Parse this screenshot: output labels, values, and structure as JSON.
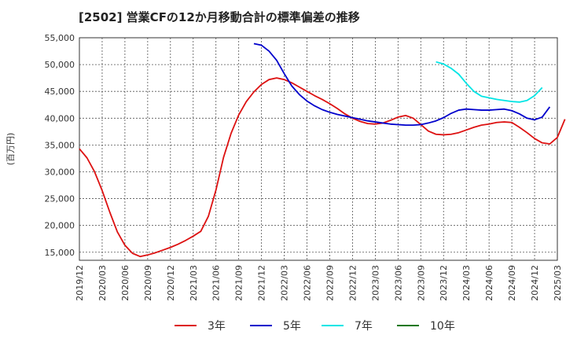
{
  "chart_data": {
    "type": "line",
    "title": "[2502]  営業CFの12か月移動合計の標準偏差の推移",
    "ylabel": "(百万円)",
    "xlabel": "",
    "ylim": [
      13500,
      55000
    ],
    "yticks": [
      15000,
      20000,
      25000,
      30000,
      35000,
      40000,
      45000,
      50000,
      55000
    ],
    "ytick_labels": [
      "15,000",
      "20,000",
      "25,000",
      "30,000",
      "35,000",
      "40,000",
      "45,000",
      "50,000",
      "55,000"
    ],
    "x_start": "2019-12",
    "x_end": "2025-03",
    "xtick_labels": [
      "2019/12",
      "2020/03",
      "2020/06",
      "2020/09",
      "2020/12",
      "2021/03",
      "2021/06",
      "2021/09",
      "2021/12",
      "2022/03",
      "2022/06",
      "2022/09",
      "2022/12",
      "2023/03",
      "2023/06",
      "2023/09",
      "2023/12",
      "2024/03",
      "2024/06",
      "2024/09",
      "2024/12",
      "2025/03"
    ],
    "grid": true,
    "legend_position": "bottom",
    "series": [
      {
        "name": "3年",
        "color": "#dd1111",
        "start": "2019-12",
        "values": [
          34300,
          32600,
          30000,
          26500,
          22500,
          18800,
          16300,
          14800,
          14200,
          14500,
          14900,
          15400,
          15900,
          16500,
          17200,
          18000,
          18900,
          21700,
          26600,
          32700,
          37200,
          40600,
          43100,
          44900,
          46300,
          47200,
          47500,
          47200,
          46600,
          45800,
          45000,
          44200,
          43500,
          42700,
          41800,
          40800,
          40000,
          39400,
          39000,
          38900,
          39100,
          39600,
          40200,
          40500,
          40000,
          38800,
          37600,
          37000,
          36900,
          37000,
          37300,
          37800,
          38300,
          38700,
          38900,
          39200,
          39300,
          39200,
          38300,
          37300,
          36200,
          35400,
          35200,
          36400,
          39800
        ]
      },
      {
        "name": "5年",
        "color": "#0000cc",
        "start": "2021-11",
        "values": [
          53900,
          53600,
          52500,
          50800,
          48300,
          46000,
          44400,
          43200,
          42300,
          41600,
          41100,
          40700,
          40400,
          40100,
          39800,
          39500,
          39300,
          39100,
          38900,
          38800,
          38700,
          38700,
          38800,
          39100,
          39500,
          40100,
          40900,
          41500,
          41700,
          41600,
          41500,
          41500,
          41600,
          41700,
          41400,
          40800,
          40000,
          39700,
          40200,
          42100
        ]
      },
      {
        "name": "7年",
        "color": "#00e5e5",
        "start": "2023-11",
        "values": [
          50500,
          50100,
          49300,
          48200,
          46500,
          45000,
          44100,
          43800,
          43500,
          43300,
          43100,
          43000,
          43300,
          44200,
          45700
        ]
      },
      {
        "name": "10年",
        "color": "#117711",
        "start": "2019-12",
        "values": []
      }
    ]
  }
}
